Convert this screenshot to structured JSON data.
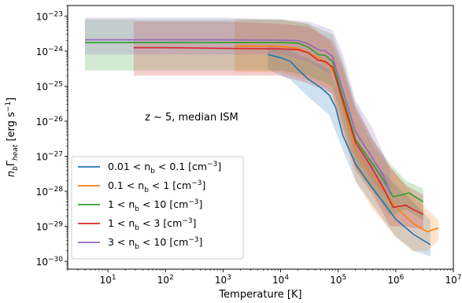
{
  "chart_data": {
    "type": "line",
    "title": "",
    "xlabel": "Temperature [K]",
    "ylabel": "n_b Γ_heat [erg s⁻¹]",
    "xscale": "log",
    "yscale": "log",
    "xlim": [
      2,
      10000000
    ],
    "ylim": [
      6e-31,
      2e-23
    ],
    "x_ticks": [
      {
        "value": 10,
        "base": "10",
        "exp": "1"
      },
      {
        "value": 100,
        "base": "10",
        "exp": "2"
      },
      {
        "value": 1000,
        "base": "10",
        "exp": "3"
      },
      {
        "value": 10000,
        "base": "10",
        "exp": "4"
      },
      {
        "value": 100000,
        "base": "10",
        "exp": "5"
      },
      {
        "value": 1000000,
        "base": "10",
        "exp": "6"
      },
      {
        "value": 10000000,
        "base": "10",
        "exp": "7"
      }
    ],
    "y_ticks": [
      {
        "value": 1e-30,
        "base": "10",
        "exp": "−30"
      },
      {
        "value": 1e-29,
        "base": "10",
        "exp": "−29"
      },
      {
        "value": 1e-28,
        "base": "10",
        "exp": "−28"
      },
      {
        "value": 1e-27,
        "base": "10",
        "exp": "−27"
      },
      {
        "value": 1e-26,
        "base": "10",
        "exp": "−26"
      },
      {
        "value": 1e-25,
        "base": "10",
        "exp": "−25"
      },
      {
        "value": 1e-24,
        "base": "10",
        "exp": "−24"
      },
      {
        "value": 1e-23,
        "base": "10",
        "exp": "−23"
      }
    ],
    "annotation": "z ∼ 5,  median ISM",
    "grid": false,
    "legend_position": "lower-left",
    "series": [
      {
        "name": "0.01 < n_b < 0.1 [cm⁻³]",
        "legend": {
          "pre": "0.01 < n",
          "sub": "b",
          "mid": " < 0.1 [cm",
          "sup": "−3",
          "post": "]"
        },
        "color": "#1f77b4",
        "points": [
          [
            6000,
            8e-25
          ],
          [
            10000,
            6.5e-25
          ],
          [
            15000,
            5e-25
          ],
          [
            20000,
            3e-25
          ],
          [
            30000,
            1.6e-25
          ],
          [
            50000,
            9e-26
          ],
          [
            70000,
            5.5e-26
          ],
          [
            90000,
            2.5e-26
          ],
          [
            120000,
            4e-27
          ],
          [
            200000,
            6e-28
          ],
          [
            350000,
            1.6e-28
          ],
          [
            600000,
            5e-29
          ],
          [
            1000000,
            1.6e-29
          ],
          [
            2000000,
            6e-30
          ],
          [
            4000000,
            3e-30
          ]
        ],
        "band": [
          [
            6000,
            3e-25,
            1.5e-24
          ],
          [
            15000,
            1.5e-25,
            1e-24
          ],
          [
            30000,
            5e-26,
            6e-25
          ],
          [
            70000,
            1.5e-26,
            3e-25
          ],
          [
            120000,
            1.5e-27,
            3e-26
          ],
          [
            200000,
            2e-28,
            2.5e-27
          ],
          [
            400000,
            4e-29,
            7e-28
          ],
          [
            1000000,
            5e-30,
            1.5e-28
          ],
          [
            2000000,
            2e-30,
            5e-29
          ],
          [
            4000000,
            1.4e-30,
            1.5e-29
          ]
        ]
      },
      {
        "name": "0.1 < n_b < 1 [cm⁻³]",
        "legend": {
          "pre": "0.1 < n",
          "sub": "b",
          "mid": " < 1 [cm",
          "sup": "−3",
          "post": "]"
        },
        "color": "#ff7f0e",
        "points": [
          [
            1600,
            1.4e-24
          ],
          [
            10000,
            1.35e-24
          ],
          [
            20000,
            1.2e-24
          ],
          [
            30000,
            9e-25
          ],
          [
            50000,
            6e-25
          ],
          [
            70000,
            4e-25
          ],
          [
            90000,
            2e-25
          ],
          [
            120000,
            3e-26
          ],
          [
            200000,
            1.5e-27
          ],
          [
            350000,
            3.5e-28
          ],
          [
            600000,
            1.1e-28
          ],
          [
            1000000,
            3.5e-29
          ],
          [
            2000000,
            1.2e-29
          ],
          [
            3500000,
            7e-30
          ],
          [
            5500000,
            9e-30
          ]
        ],
        "band": [
          [
            1600,
            2.5e-25,
            8e-24
          ],
          [
            10000,
            2.5e-25,
            8e-24
          ],
          [
            30000,
            1.5e-25,
            6e-24
          ],
          [
            70000,
            8e-26,
            2e-24
          ],
          [
            120000,
            5e-27,
            3e-25
          ],
          [
            200000,
            2e-28,
            2e-26
          ],
          [
            400000,
            3e-29,
            2e-27
          ],
          [
            1000000,
            5e-30,
            3e-28
          ],
          [
            2000000,
            2e-30,
            8e-29
          ],
          [
            3500000,
            2e-30,
            3e-29
          ],
          [
            5500000,
            4e-30,
            1.5e-29
          ]
        ]
      },
      {
        "name": "1 < n_b < 10 [cm⁻³]",
        "legend": {
          "pre": "1 < n",
          "sub": "b",
          "mid": " < 10 [cm",
          "sup": "−3",
          "post": "]"
        },
        "color": "#2ca02c",
        "points": [
          [
            4,
            1.75e-24
          ],
          [
            100,
            1.75e-24
          ],
          [
            1000,
            1.75e-24
          ],
          [
            10000,
            1.75e-24
          ],
          [
            20000,
            1.7e-24
          ],
          [
            30000,
            1.3e-24
          ],
          [
            45000,
            8e-25
          ],
          [
            60000,
            7.5e-25
          ],
          [
            80000,
            5e-25
          ],
          [
            110000,
            8e-26
          ],
          [
            200000,
            3e-27
          ],
          [
            350000,
            8e-28
          ],
          [
            600000,
            2.2e-28
          ],
          [
            900000,
            7e-29
          ],
          [
            1300000,
            8e-29
          ],
          [
            1700000,
            9e-29
          ],
          [
            3000000,
            5e-29
          ]
        ],
        "band": [
          [
            4,
            2.8e-25,
            8e-24
          ],
          [
            1000,
            2.8e-25,
            8e-24
          ],
          [
            10000,
            2.8e-25,
            8e-24
          ],
          [
            30000,
            2e-25,
            6e-24
          ],
          [
            80000,
            1e-25,
            3e-24
          ],
          [
            120000,
            1e-26,
            5e-25
          ],
          [
            200000,
            5e-28,
            3e-26
          ],
          [
            400000,
            1e-28,
            3e-27
          ],
          [
            800000,
            2e-29,
            6e-28
          ],
          [
            1500000,
            3e-29,
            2e-28
          ],
          [
            3000000,
            1.5e-29,
            1.2e-28
          ]
        ]
      },
      {
        "name": "1 < n_b < 3 [cm⁻³]",
        "legend": {
          "pre": "1 < n",
          "sub": "b",
          "mid": " < 3 [cm",
          "sup": "−3",
          "post": "]"
        },
        "color": "#d62728",
        "points": [
          [
            28,
            1.25e-24
          ],
          [
            100,
            1.25e-24
          ],
          [
            1000,
            1.2e-24
          ],
          [
            10000,
            1.15e-24
          ],
          [
            20000,
            1.1e-24
          ],
          [
            30000,
            9e-25
          ],
          [
            45000,
            5.5e-25
          ],
          [
            60000,
            5e-25
          ],
          [
            80000,
            3.5e-25
          ],
          [
            110000,
            6e-26
          ],
          [
            200000,
            2.5e-27
          ],
          [
            350000,
            6e-28
          ],
          [
            600000,
            1.3e-28
          ],
          [
            900000,
            3.5e-29
          ],
          [
            1500000,
            4e-29
          ],
          [
            2000000,
            3e-29
          ],
          [
            3000000,
            2.2e-29
          ]
        ],
        "band": [
          [
            28,
            2e-25,
            7e-24
          ],
          [
            1000,
            2e-25,
            7e-24
          ],
          [
            10000,
            2e-25,
            6e-24
          ],
          [
            30000,
            1.2e-25,
            5e-24
          ],
          [
            80000,
            6e-26,
            2e-24
          ],
          [
            120000,
            6e-27,
            4e-25
          ],
          [
            200000,
            4e-28,
            2.5e-26
          ],
          [
            400000,
            8e-29,
            3e-27
          ],
          [
            800000,
            1e-29,
            5e-28
          ],
          [
            1500000,
            1e-29,
            1.5e-28
          ],
          [
            3000000,
            8e-30,
            8e-29
          ]
        ]
      },
      {
        "name": "3 < n_b < 10 [cm⁻³]",
        "legend": {
          "pre": "3 < n",
          "sub": "b",
          "mid": " < 10 [cm",
          "sup": "−3",
          "post": "]"
        },
        "color": "#9467bd",
        "points": [
          [
            4,
            2.1e-24
          ],
          [
            100,
            2.1e-24
          ],
          [
            1000,
            2.1e-24
          ],
          [
            10000,
            2.05e-24
          ],
          [
            20000,
            2e-24
          ],
          [
            30000,
            1.6e-24
          ],
          [
            45000,
            1.1e-24
          ],
          [
            60000,
            1e-24
          ],
          [
            80000,
            7e-25
          ],
          [
            110000,
            1.2e-25
          ],
          [
            200000,
            5e-27
          ],
          [
            350000,
            1.2e-27
          ],
          [
            600000,
            3e-28
          ],
          [
            800000,
            9e-29
          ]
        ],
        "band": [
          [
            4,
            8e-25,
            9e-24
          ],
          [
            1000,
            8e-25,
            9e-24
          ],
          [
            10000,
            8e-25,
            8e-24
          ],
          [
            30000,
            5e-25,
            7e-24
          ],
          [
            80000,
            2e-25,
            4e-24
          ],
          [
            120000,
            2e-26,
            8e-25
          ],
          [
            200000,
            1e-27,
            4e-26
          ],
          [
            400000,
            2e-28,
            6e-27
          ],
          [
            800000,
            5e-29,
            4e-28
          ]
        ]
      }
    ]
  }
}
